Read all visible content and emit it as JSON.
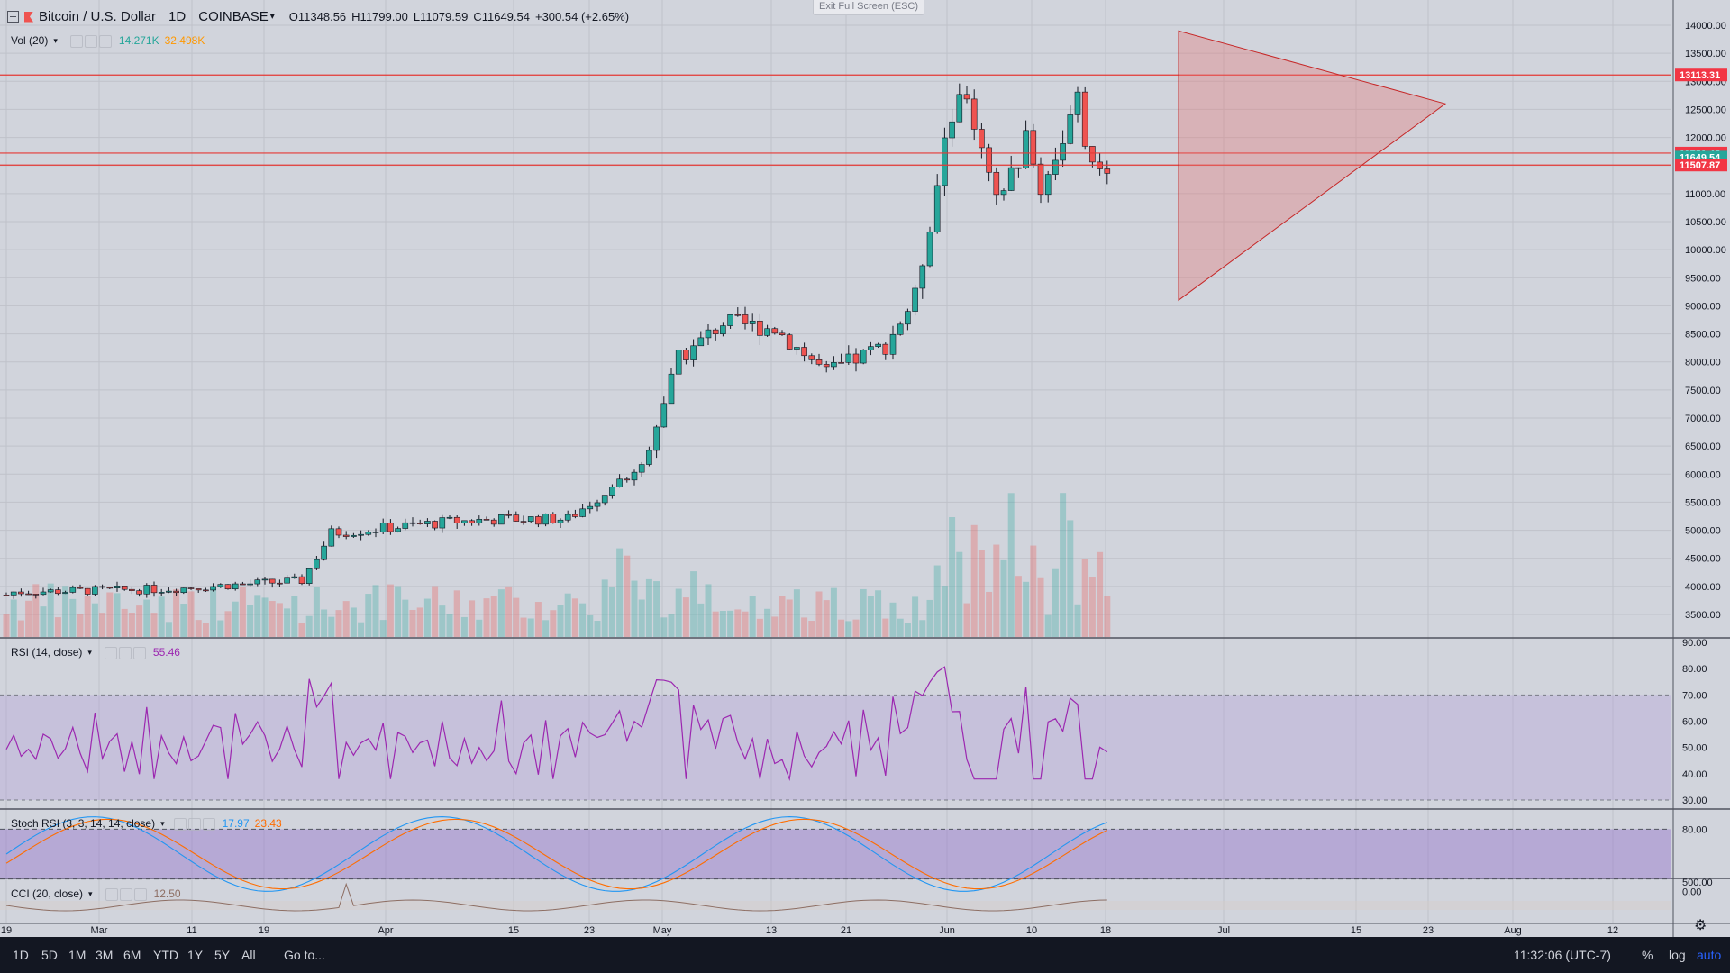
{
  "symbol": {
    "title": "Bitcoin / U.S. Dollar",
    "interval": "1D",
    "exchange": "COINBASE",
    "open": "O11348.56",
    "high": "H11799.00",
    "low": "L11079.59",
    "close": "C11649.54",
    "change": "+300.54 (+2.65%)",
    "collapse_icon": "minus-square-icon",
    "logo_icon": "bitcoin-logo-icon"
  },
  "fullscreen_hint": "Exit Full Screen (ESC)",
  "indicators": {
    "volume": {
      "label": "Vol (20)",
      "value1": "14.271K",
      "value2": "32.498K"
    },
    "rsi": {
      "label": "RSI (14, close)",
      "value": "55.46"
    },
    "stoch": {
      "label": "Stoch RSI (3, 3, 14, 14, close)",
      "value1": "17.97",
      "value2": "23.43"
    },
    "cci": {
      "label": "CCI (20, close)",
      "value": "12.50"
    }
  },
  "price_axis": {
    "ticks": [
      "14000.00",
      "13500.00",
      "13000.00",
      "12500.00",
      "12000.00",
      "11500.00",
      "11000.00",
      "10500.00",
      "10000.00",
      "9500.00",
      "9000.00",
      "8500.00",
      "8000.00",
      "7500.00",
      "7000.00",
      "6500.00",
      "6000.00",
      "5500.00",
      "5000.00",
      "4500.00",
      "4000.00",
      "3500.00"
    ],
    "badges": [
      {
        "text": "13113.31",
        "color": "#f23645",
        "value": 13113.31
      },
      {
        "text": "11721.46",
        "color": "#f23645",
        "value": 11721.46
      },
      {
        "text": "11649.54",
        "color": "#26a69a",
        "value": 11649.54
      },
      {
        "text": "11507.87",
        "color": "#f23645",
        "value": 11507.87
      }
    ]
  },
  "rsi_axis": [
    "90.00",
    "80.00",
    "70.00",
    "60.00",
    "50.00",
    "40.00",
    "30.00"
  ],
  "stoch_axis": [
    "80.00",
    "0.00"
  ],
  "cci_axis": [
    "500.00"
  ],
  "time_axis": [
    "19",
    "Mar",
    "11",
    "19",
    "Apr",
    "15",
    "23",
    "May",
    "13",
    "21",
    "Jun",
    "10",
    "18",
    "Jul",
    "15",
    "23",
    "Aug",
    "12"
  ],
  "bottom_bar": {
    "ranges": [
      "1D",
      "5D",
      "1M",
      "3M",
      "6M",
      "YTD",
      "1Y",
      "5Y",
      "All"
    ],
    "goto": "Go to...",
    "clock": "11:32:06 (UTC-7)",
    "percent": "%",
    "log": "log",
    "auto": "auto"
  },
  "colors": {
    "up": "#26a69a",
    "down": "#ef5350",
    "line": "#e53935",
    "rsi": "#9c27b0",
    "stoch_k": "#2196f3",
    "stoch_d": "#ff6d00",
    "cci": "#8d6e63"
  },
  "chart_data": {
    "type": "candlestick",
    "x_range": [
      "2019-02-19",
      "2019-08-12"
    ],
    "candle_count": 123,
    "y_range": [
      3200,
      14300
    ],
    "visible_close_points": [
      [
        1,
        3900
      ],
      [
        21,
        3950
      ],
      [
        40,
        4100
      ],
      [
        44,
        4950
      ],
      [
        60,
        5150
      ],
      [
        67,
        5200
      ],
      [
        76,
        5200
      ],
      [
        86,
        6150
      ],
      [
        91,
        8050
      ],
      [
        97,
        8700
      ],
      [
        104,
        8600
      ],
      [
        111,
        7800
      ],
      [
        119,
        8300
      ],
      [
        123,
        9150
      ],
      [
        127,
        11850
      ],
      [
        129,
        12930
      ],
      [
        134,
        10800
      ],
      [
        138,
        11910
      ],
      [
        140,
        11100
      ],
      [
        145,
        12600
      ],
      [
        147,
        11350
      ],
      [
        150,
        11649.54
      ]
    ],
    "horizontal_levels": [
      13113.31,
      11721.46,
      11507.87
    ],
    "triangle": {
      "apex_top": [
        13900
      ],
      "apex_bottom": [
        9100
      ],
      "apex_right": [
        12600
      ]
    }
  }
}
